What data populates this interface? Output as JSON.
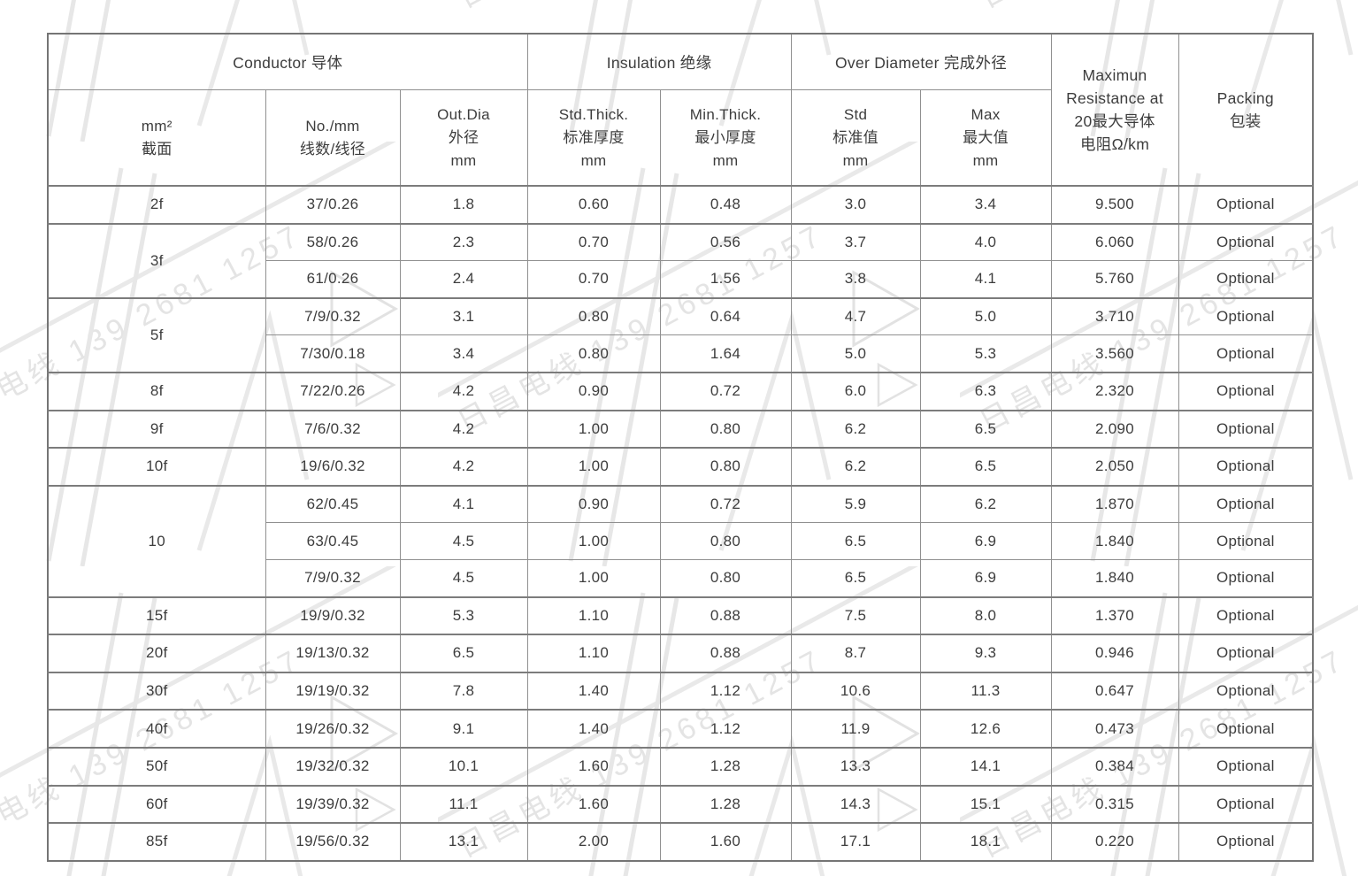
{
  "watermark": {
    "text": "日昌电线 139 2681 1257",
    "color": "#e4e4e4"
  },
  "table": {
    "border_color": "#909090",
    "text_color": "#3d3d3d",
    "groups": {
      "conductor": "Conductor 导体",
      "insulation": "Insulation 绝缘",
      "over_diameter": "Over Diameter 完成外径"
    },
    "resistance_header_lines": [
      "Maximun",
      "Resistance at",
      "20最大导体",
      "电阻Ω/km"
    ],
    "packing_header_lines": [
      "Packing",
      "包装"
    ],
    "subheaders": [
      {
        "name": "size",
        "lines": [
          "mm²",
          "截面"
        ]
      },
      {
        "name": "strands",
        "lines": [
          "No./mm",
          "线数/线径"
        ]
      },
      {
        "name": "out-dia",
        "lines": [
          "Out.Dia",
          "外径",
          "mm"
        ]
      },
      {
        "name": "std-thick",
        "lines": [
          "Std.Thick.",
          "标准厚度",
          "mm"
        ]
      },
      {
        "name": "min-thick",
        "lines": [
          "Min.Thick.",
          "最小厚度",
          "mm"
        ]
      },
      {
        "name": "od-std",
        "lines": [
          "Std",
          "标准值",
          "mm"
        ]
      },
      {
        "name": "od-max",
        "lines": [
          "Max",
          "最大值",
          "mm"
        ]
      }
    ],
    "value_column_names": [
      "strands",
      "out-dia",
      "std-thick",
      "min-thick",
      "od-std",
      "od-max",
      "resistance",
      "packing"
    ],
    "rows": [
      {
        "size": "2f",
        "rowspan": 1,
        "values": [
          "37/0.26",
          "1.8",
          "0.60",
          "0.48",
          "3.0",
          "3.4",
          "9.500",
          "Optional"
        ]
      },
      {
        "size": "3f",
        "rowspan": 2,
        "values": [
          "58/0.26",
          "2.3",
          "0.70",
          "0.56",
          "3.7",
          "4.0",
          "6.060",
          "Optional"
        ]
      },
      {
        "values": [
          "61/0.26",
          "2.4",
          "0.70",
          "1.56",
          "3.8",
          "4.1",
          "5.760",
          "Optional"
        ]
      },
      {
        "size": "5f",
        "rowspan": 2,
        "values": [
          "7/9/0.32",
          "3.1",
          "0.80",
          "0.64",
          "4.7",
          "5.0",
          "3.710",
          "Optional"
        ]
      },
      {
        "values": [
          "7/30/0.18",
          "3.4",
          "0.80",
          "1.64",
          "5.0",
          "5.3",
          "3.560",
          "Optional"
        ]
      },
      {
        "size": "8f",
        "rowspan": 1,
        "values": [
          "7/22/0.26",
          "4.2",
          "0.90",
          "0.72",
          "6.0",
          "6.3",
          "2.320",
          "Optional"
        ]
      },
      {
        "size": "9f",
        "rowspan": 1,
        "values": [
          "7/6/0.32",
          "4.2",
          "1.00",
          "0.80",
          "6.2",
          "6.5",
          "2.090",
          "Optional"
        ]
      },
      {
        "size": "10f",
        "rowspan": 1,
        "values": [
          "19/6/0.32",
          "4.2",
          "1.00",
          "0.80",
          "6.2",
          "6.5",
          "2.050",
          "Optional"
        ]
      },
      {
        "size": "10",
        "rowspan": 3,
        "values": [
          "62/0.45",
          "4.1",
          "0.90",
          "0.72",
          "5.9",
          "6.2",
          "1.870",
          "Optional"
        ]
      },
      {
        "values": [
          "63/0.45",
          "4.5",
          "1.00",
          "0.80",
          "6.5",
          "6.9",
          "1.840",
          "Optional"
        ]
      },
      {
        "values": [
          "7/9/0.32",
          "4.5",
          "1.00",
          "0.80",
          "6.5",
          "6.9",
          "1.840",
          "Optional"
        ]
      },
      {
        "size": "15f",
        "rowspan": 1,
        "values": [
          "19/9/0.32",
          "5.3",
          "1.10",
          "0.88",
          "7.5",
          "8.0",
          "1.370",
          "Optional"
        ]
      },
      {
        "size": "20f",
        "rowspan": 1,
        "values": [
          "19/13/0.32",
          "6.5",
          "1.10",
          "0.88",
          "8.7",
          "9.3",
          "0.946",
          "Optional"
        ]
      },
      {
        "size": "30f",
        "rowspan": 1,
        "values": [
          "19/19/0.32",
          "7.8",
          "1.40",
          "1.12",
          "10.6",
          "11.3",
          "0.647",
          "Optional"
        ]
      },
      {
        "size": "40f",
        "rowspan": 1,
        "values": [
          "19/26/0.32",
          "9.1",
          "1.40",
          "1.12",
          "11.9",
          "12.6",
          "0.473",
          "Optional"
        ]
      },
      {
        "size": "50f",
        "rowspan": 1,
        "values": [
          "19/32/0.32",
          "10.1",
          "1.60",
          "1.28",
          "13.3",
          "14.1",
          "0.384",
          "Optional"
        ]
      },
      {
        "size": "60f",
        "rowspan": 1,
        "values": [
          "19/39/0.32",
          "11.1",
          "1.60",
          "1.28",
          "14.3",
          "15.1",
          "0.315",
          "Optional"
        ]
      },
      {
        "size": "85f",
        "rowspan": 1,
        "values": [
          "19/56/0.32",
          "13.1",
          "2.00",
          "1.60",
          "17.1",
          "18.1",
          "0.220",
          "Optional"
        ]
      }
    ]
  }
}
